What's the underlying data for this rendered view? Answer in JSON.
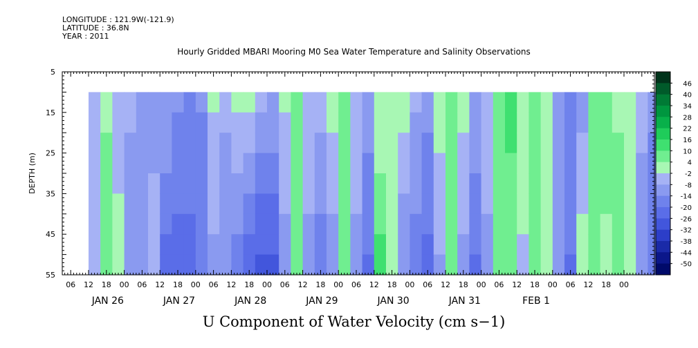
{
  "header": {
    "longitude": "LONGITUDE : 121.9W(-121.9)",
    "latitude": "LATITUDE : 36.8N",
    "year": "YEAR : 2011"
  },
  "chart_data": {
    "type": "heatmap",
    "title": "Hourly Gridded MBARI Mooring M0 Sea Water Temperature and Salinity Observations",
    "xlabel": "U Component of Water Velocity (cm s−1)",
    "ylabel": "DEPTH (m)",
    "ylim": [
      5,
      55
    ],
    "y_axis_inverted": true,
    "y_ticks": [
      5,
      15,
      25,
      35,
      45,
      55
    ],
    "x_hour_ticks": [
      "06",
      "12",
      "18",
      "00",
      "06",
      "12",
      "18",
      "00",
      "06",
      "12",
      "18",
      "00",
      "06",
      "12",
      "18",
      "00",
      "06",
      "12",
      "18",
      "00",
      "06",
      "12",
      "18",
      "00",
      "06",
      "12",
      "18",
      "00",
      "06",
      "12",
      "18",
      "00"
    ],
    "x_date_labels": [
      "JAN 26",
      "JAN 27",
      "JAN 28",
      "JAN 29",
      "JAN 30",
      "JAN 31",
      "FEB  1"
    ],
    "data_depth_range": [
      10,
      55
    ],
    "colorbar": {
      "levels": [
        "46",
        "40",
        "34",
        "28",
        "22",
        "16",
        "10",
        "4",
        "-2",
        "-8",
        "-14",
        "-20",
        "-26",
        "-32",
        "-38",
        "-44",
        "-50"
      ],
      "range": [
        -50,
        52
      ],
      "colors": [
        "#00331a",
        "#005a2a",
        "#007a35",
        "#00963f",
        "#08b04a",
        "#1fcc5a",
        "#3fe070",
        "#70ee90",
        "#a8f7b4",
        "#a6b2f5",
        "#8a9af0",
        "#6f82ec",
        "#5a6de8",
        "#4256dc",
        "#2c3ec8",
        "#1a2aa8",
        "#0b178a",
        "#000a6a"
      ]
    },
    "columns": [
      {
        "hour": 0,
        "top": -1,
        "bottom": -2
      },
      {
        "hour": 4,
        "top": 6,
        "bottom": 10
      },
      {
        "hour": 8,
        "top": -1,
        "bottom": 3
      },
      {
        "hour": 12,
        "top": -4,
        "bottom": -8
      },
      {
        "hour": 16,
        "top": -5,
        "bottom": -6
      },
      {
        "hour": 20,
        "top": -7,
        "bottom": -2
      },
      {
        "hour": 24,
        "top": -5,
        "bottom": -18
      },
      {
        "hour": 28,
        "top": -9,
        "bottom": -20
      },
      {
        "hour": 32,
        "top": -12,
        "bottom": -18
      },
      {
        "hour": 36,
        "top": -10,
        "bottom": -14
      },
      {
        "hour": 40,
        "top": 2,
        "bottom": -6
      },
      {
        "hour": 44,
        "top": -3,
        "bottom": -10
      },
      {
        "hour": 48,
        "top": 3,
        "bottom": -14
      },
      {
        "hour": 52,
        "top": 4,
        "bottom": -20
      },
      {
        "hour": 56,
        "top": -4,
        "bottom": -24
      },
      {
        "hour": 60,
        "top": -6,
        "bottom": -22
      },
      {
        "hour": 64,
        "top": 2,
        "bottom": -8
      },
      {
        "hour": 68,
        "top": 8,
        "bottom": 12
      },
      {
        "hour": 72,
        "top": 1,
        "bottom": -8
      },
      {
        "hour": 76,
        "top": -3,
        "bottom": -14
      },
      {
        "hour": 80,
        "top": 4,
        "bottom": -8
      },
      {
        "hour": 84,
        "top": 8,
        "bottom": 12
      },
      {
        "hour": 88,
        "top": -2,
        "bottom": -6
      },
      {
        "hour": 92,
        "top": -8,
        "bottom": -16
      },
      {
        "hour": 96,
        "top": 2,
        "bottom": 14
      },
      {
        "hour": 100,
        "top": 6,
        "bottom": 4
      },
      {
        "hour": 104,
        "top": 3,
        "bottom": -10
      },
      {
        "hour": 108,
        "top": -4,
        "bottom": -14
      },
      {
        "hour": 112,
        "top": -8,
        "bottom": -18
      },
      {
        "hour": 116,
        "top": 5,
        "bottom": -6
      },
      {
        "hour": 120,
        "top": 10,
        "bottom": 8
      },
      {
        "hour": 124,
        "top": 3,
        "bottom": -6
      },
      {
        "hour": 128,
        "top": -6,
        "bottom": -16
      },
      {
        "hour": 132,
        "top": -2,
        "bottom": -6
      },
      {
        "hour": 136,
        "top": 12,
        "bottom": 10
      },
      {
        "hour": 140,
        "top": 14,
        "bottom": 8
      },
      {
        "hour": 144,
        "top": 6,
        "bottom": 0
      },
      {
        "hour": 148,
        "top": 10,
        "bottom": 12
      },
      {
        "hour": 152,
        "top": 4,
        "bottom": 2
      },
      {
        "hour": 156,
        "top": -6,
        "bottom": -10
      },
      {
        "hour": 160,
        "top": -12,
        "bottom": -16
      },
      {
        "hour": 164,
        "top": -8,
        "bottom": 6
      },
      {
        "hour": 168,
        "top": 10,
        "bottom": 12
      },
      {
        "hour": 172,
        "top": 12,
        "bottom": 4
      },
      {
        "hour": 176,
        "top": 6,
        "bottom": 10
      },
      {
        "hour": 180,
        "top": 4,
        "bottom": 6
      },
      {
        "hour": 184,
        "top": -4,
        "bottom": -6
      },
      {
        "hour": 188,
        "top": -10,
        "bottom": -12
      },
      {
        "hour": 192,
        "top": -14,
        "bottom": -18
      }
    ]
  }
}
